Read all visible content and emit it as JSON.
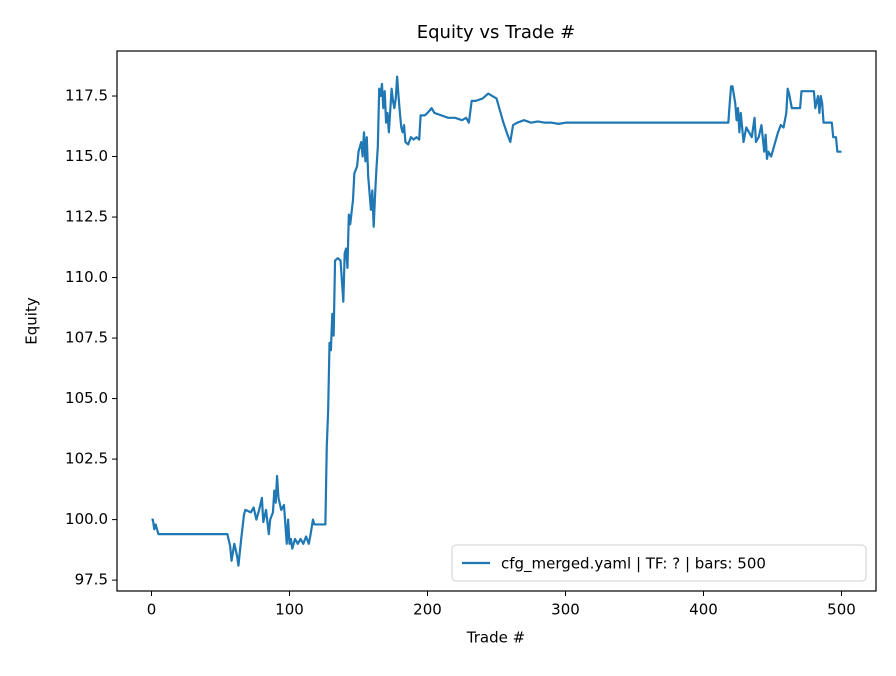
{
  "chart_data": {
    "type": "line",
    "title": "Equity vs Trade #",
    "x_label": "Trade #",
    "y_label": "Equity",
    "x": [
      0,
      1,
      2,
      3,
      5,
      55,
      57,
      58,
      60,
      62,
      63,
      65,
      67,
      68,
      72,
      74,
      76,
      78,
      80,
      81,
      83,
      85,
      86,
      88,
      89,
      90,
      91,
      92,
      94,
      96,
      98,
      99,
      100,
      101,
      102,
      104,
      106,
      108,
      110,
      112,
      114,
      115,
      117,
      118,
      126,
      127,
      128,
      129,
      130,
      131,
      132,
      133,
      135,
      137,
      139,
      140,
      141,
      142,
      143,
      144,
      146,
      147,
      149,
      150,
      152,
      153,
      154,
      155,
      156,
      157,
      158,
      159,
      160,
      161,
      162,
      163,
      164,
      165,
      166,
      167,
      168,
      169,
      170,
      171,
      172,
      174,
      175,
      176,
      177,
      178,
      179,
      180,
      181,
      182,
      183,
      184,
      186,
      188,
      190,
      192,
      194,
      195,
      198,
      200,
      203,
      205,
      210,
      215,
      220,
      225,
      228,
      230,
      232,
      235,
      240,
      244,
      247,
      250,
      252,
      255,
      258,
      260,
      262,
      265,
      270,
      275,
      280,
      285,
      290,
      295,
      300,
      418,
      419,
      420,
      421,
      423,
      424,
      425,
      426,
      427,
      429,
      431,
      433,
      435,
      437,
      438,
      440,
      442,
      444,
      445,
      446,
      447,
      449,
      452,
      454,
      456,
      458,
      460,
      461,
      462,
      464,
      470,
      471,
      480,
      481,
      483,
      484,
      485,
      486,
      487,
      493,
      494,
      496,
      497,
      500
    ],
    "series": [
      {
        "name": "cfg_merged.yaml | TF: ? | bars: 500",
        "color": "#1f77b4",
        "values": [
          100,
          100,
          99.6,
          99.8,
          99.4,
          99.4,
          98.9,
          98.3,
          99.0,
          98.5,
          98.1,
          99.2,
          100.2,
          100.4,
          100.3,
          100.5,
          100.0,
          100.4,
          100.9,
          99.9,
          100.4,
          99.4,
          100.0,
          100.3,
          101.2,
          100.7,
          101.8,
          100.9,
          100.4,
          100.6,
          99.0,
          100.0,
          99.0,
          99.2,
          98.8,
          99.2,
          99.0,
          99.2,
          99.0,
          99.3,
          99.0,
          99.3,
          100.0,
          99.8,
          99.8,
          103.0,
          104.5,
          107.3,
          107.0,
          108.5,
          107.6,
          110.7,
          110.8,
          110.7,
          109.0,
          111.0,
          111.2,
          110.4,
          112.6,
          112.2,
          113.2,
          114.3,
          114.6,
          115.2,
          115.6,
          115.0,
          116.0,
          114.8,
          115.8,
          114.2,
          113.5,
          112.8,
          113.6,
          112.1,
          113.4,
          114.5,
          115.4,
          117.8,
          117.5,
          118.0,
          117.0,
          117.7,
          116.4,
          116.8,
          116.0,
          117.8,
          117.3,
          117.0,
          117.4,
          118.3,
          117.5,
          116.8,
          116.2,
          116.0,
          116.3,
          115.6,
          115.5,
          115.8,
          115.7,
          115.8,
          115.7,
          116.7,
          116.7,
          116.8,
          117.0,
          116.8,
          116.7,
          116.6,
          116.6,
          116.5,
          116.6,
          116.4,
          117.3,
          117.3,
          117.4,
          117.6,
          117.5,
          117.4,
          117.0,
          116.4,
          115.9,
          115.6,
          116.3,
          116.4,
          116.5,
          116.4,
          116.45,
          116.4,
          116.4,
          116.35,
          116.4,
          116.4,
          117.2,
          117.9,
          117.9,
          117.2,
          116.5,
          117.0,
          116.0,
          116.8,
          115.6,
          116.2,
          116.0,
          115.8,
          116.6,
          115.6,
          115.8,
          116.3,
          115.2,
          115.9,
          114.9,
          115.2,
          115.0,
          115.6,
          116.0,
          116.3,
          116.2,
          116.8,
          117.8,
          117.6,
          117.0,
          117.0,
          117.7,
          117.7,
          117.0,
          117.5,
          116.8,
          117.5,
          117.2,
          116.4,
          116.4,
          115.8,
          115.8,
          115.2,
          115.2
        ]
      }
    ],
    "xlim": [
      -25,
      525
    ],
    "xticks": [
      0,
      100,
      200,
      300,
      400,
      500
    ],
    "ylim": [
      97.05,
      119.36
    ],
    "yticks": [
      97.5,
      {
        "value": 100,
        "label": "100.0"
      },
      102.5,
      {
        "value": 105,
        "label": "105.0"
      },
      107.5,
      {
        "value": 110,
        "label": "110.0"
      },
      112.5,
      {
        "value": 115,
        "label": "115.0"
      },
      117.5
    ],
    "legend": "lower right"
  }
}
